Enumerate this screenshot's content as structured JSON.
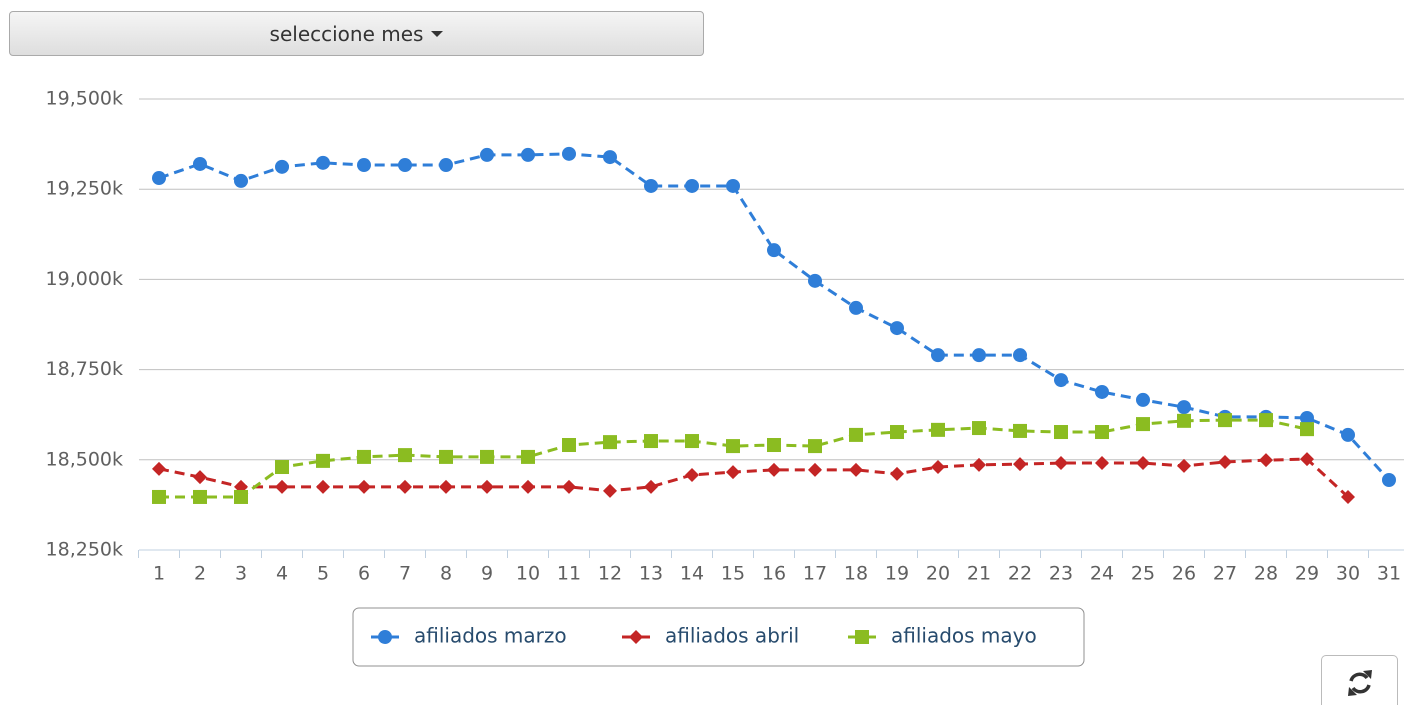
{
  "controls": {
    "month_button": "seleccione mes"
  },
  "chart_data": {
    "type": "line",
    "categories": [
      "1",
      "2",
      "3",
      "4",
      "5",
      "6",
      "7",
      "8",
      "9",
      "10",
      "11",
      "12",
      "13",
      "14",
      "15",
      "16",
      "17",
      "18",
      "19",
      "20",
      "21",
      "22",
      "23",
      "24",
      "25",
      "26",
      "27",
      "28",
      "29",
      "30",
      "31"
    ],
    "ylim": [
      18250000,
      19500000
    ],
    "yticks": [
      {
        "value": 18250000,
        "label": "18,250k"
      },
      {
        "value": 18500000,
        "label": "18,500k"
      },
      {
        "value": 18750000,
        "label": "18,750k"
      },
      {
        "value": 19000000,
        "label": "19,000k"
      },
      {
        "value": 19250000,
        "label": "19,250k"
      },
      {
        "value": 19500000,
        "label": "19,500k"
      }
    ],
    "grid": true,
    "legend": "bottom",
    "series": [
      {
        "name": "afiliados marzo",
        "color": "#2f7ed8",
        "marker": "circle",
        "values": [
          19281000,
          19320000,
          19273000,
          19312000,
          19323000,
          19317000,
          19317000,
          19317000,
          19345000,
          19345000,
          19348000,
          19339000,
          19259000,
          19259000,
          19259000,
          19081000,
          18996000,
          18921000,
          18865000,
          18790000,
          18790000,
          18790000,
          18721000,
          18688000,
          18666000,
          18646000,
          18619000,
          18619000,
          18616000,
          18569000,
          18444000
        ]
      },
      {
        "name": "afiliados abril",
        "color": "#c42525",
        "marker": "diamond",
        "values": [
          18475000,
          18452000,
          18425000,
          18425000,
          18425000,
          18425000,
          18425000,
          18425000,
          18425000,
          18425000,
          18425000,
          18414000,
          18425000,
          18458000,
          18466000,
          18472000,
          18472000,
          18472000,
          18461000,
          18480000,
          18486000,
          18488000,
          18491000,
          18491000,
          18491000,
          18483000,
          18494000,
          18499000,
          18502000,
          18397000,
          null
        ]
      },
      {
        "name": "afiliados mayo",
        "color": "#8bbc21",
        "marker": "square",
        "values": [
          18397000,
          18397000,
          18397000,
          18480000,
          18497000,
          18508000,
          18513000,
          18508000,
          18508000,
          18508000,
          18541000,
          18549000,
          18552000,
          18552000,
          18538000,
          18541000,
          18538000,
          18569000,
          18577000,
          18583000,
          18588000,
          18580000,
          18577000,
          18577000,
          18599000,
          18608000,
          18610000,
          18610000,
          18585000,
          null,
          null
        ]
      }
    ]
  }
}
